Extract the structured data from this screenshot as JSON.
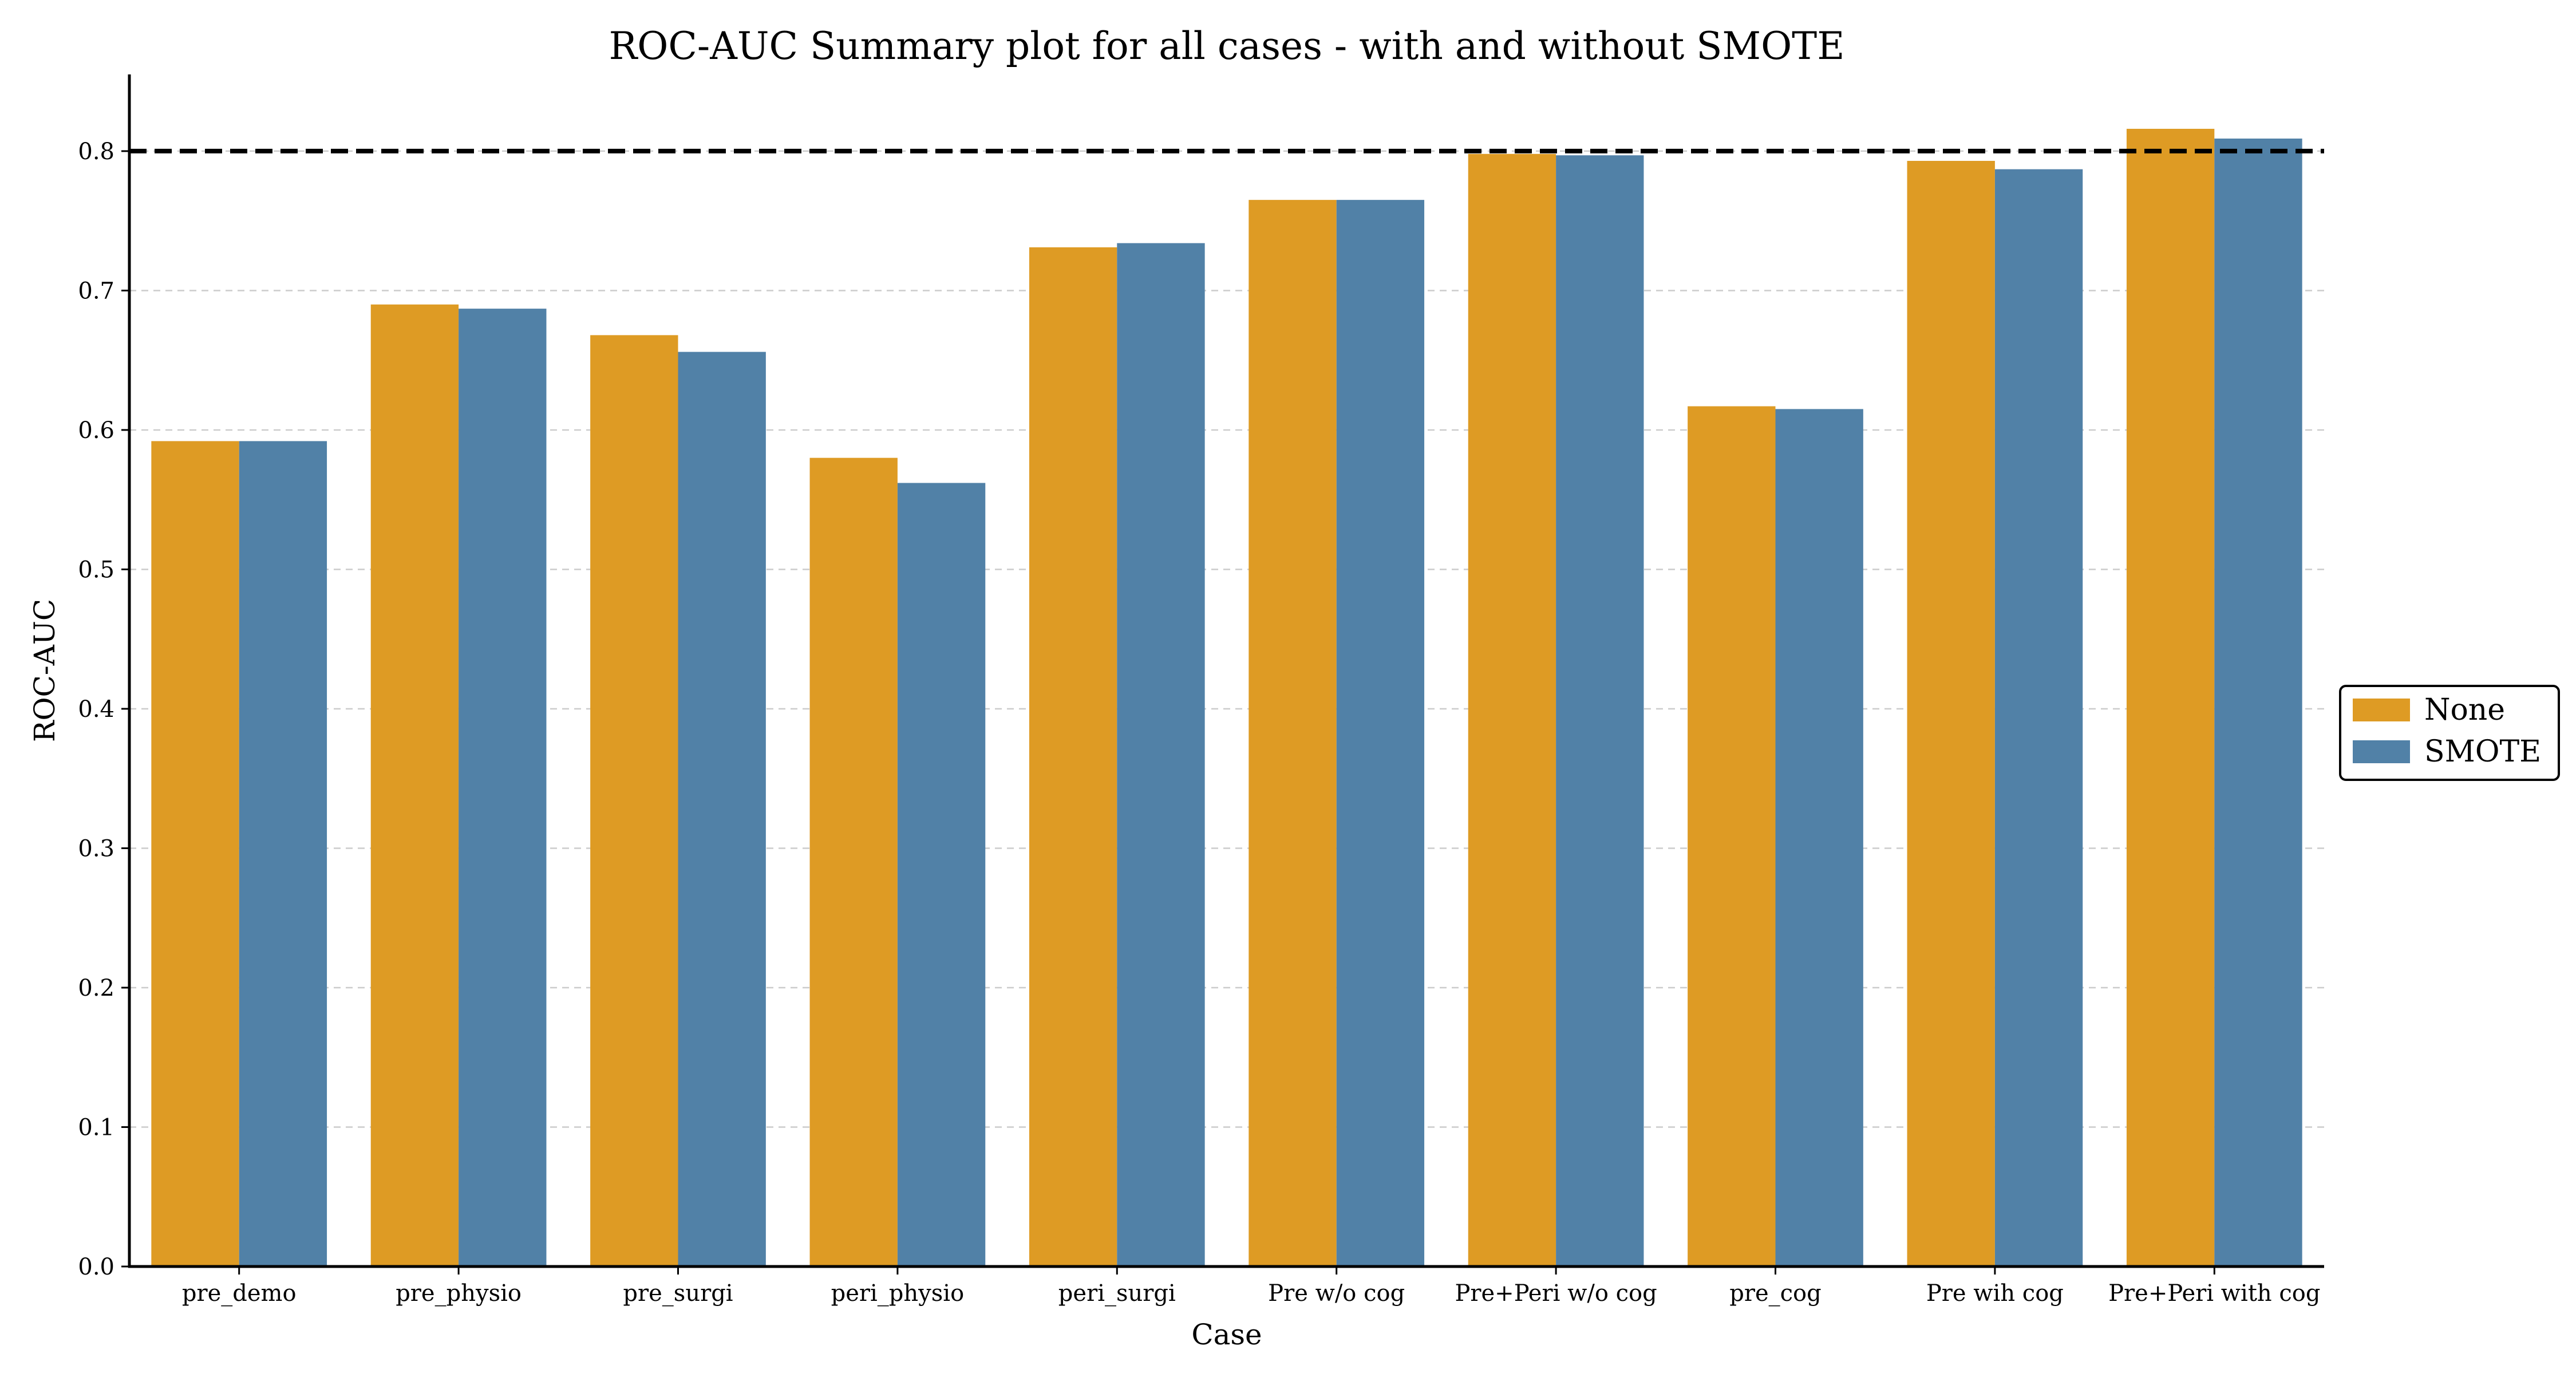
{
  "chart_data": {
    "type": "bar",
    "title": "ROC-AUC Summary plot for all cases - with and without SMOTE",
    "xlabel": "Case",
    "ylabel": "ROC-AUC",
    "ylim": [
      0,
      0.855
    ],
    "yticks": [
      "0.0",
      "0.1",
      "0.2",
      "0.3",
      "0.4",
      "0.5",
      "0.6",
      "0.7",
      "0.8"
    ],
    "categories": [
      "pre_demo",
      "pre_physio",
      "pre_surgi",
      "peri_physio",
      "peri_surgi",
      "Pre w/o cog",
      "Pre+Peri w/o cog",
      "pre_cog",
      "Pre wih cog",
      "Pre+Peri with cog"
    ],
    "series": [
      {
        "name": "None",
        "color": "#DE9B24",
        "values": [
          0.592,
          0.69,
          0.668,
          0.58,
          0.731,
          0.765,
          0.798,
          0.617,
          0.793,
          0.816
        ]
      },
      {
        "name": "SMOTE",
        "color": "#5181A7",
        "values": [
          0.592,
          0.687,
          0.656,
          0.562,
          0.734,
          0.765,
          0.797,
          0.615,
          0.787,
          0.809
        ]
      }
    ],
    "reference_line": {
      "value": 0.8,
      "style": "dashed",
      "color": "#000000"
    },
    "grid": "y",
    "legend_position": "right"
  }
}
